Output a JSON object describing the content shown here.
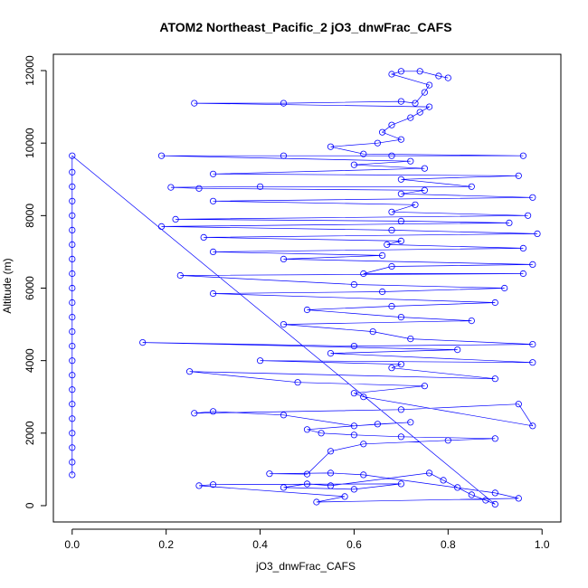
{
  "chart_data": {
    "type": "scatter",
    "title": "ATOM2 Northeast_Pacific_2 jO3_dnwFrac_CAFS",
    "xlabel": "jO3_dnwFrac_CAFS",
    "ylabel": "Altitude (m)",
    "xlim": [
      -0.04,
      1.04
    ],
    "ylim": [
      -450,
      12450
    ],
    "x_ticks": [
      0.0,
      0.2,
      0.4,
      0.6,
      0.8,
      1.0
    ],
    "x_tick_labels": [
      "0.0",
      "0.2",
      "0.4",
      "0.6",
      "0.8",
      "1.0"
    ],
    "y_ticks": [
      0,
      2000,
      4000,
      6000,
      8000,
      10000,
      12000
    ],
    "y_tick_labels": [
      "0",
      "2000",
      "4000",
      "6000",
      "8000",
      "10000",
      "12000"
    ],
    "grid": false,
    "legend": "none",
    "marker": "open-circle",
    "connect_points": true,
    "series": [
      {
        "color": "#0000ff",
        "points": [
          [
            0.0,
            850
          ],
          [
            0.0,
            1200
          ],
          [
            0.0,
            1600
          ],
          [
            0.0,
            2000
          ],
          [
            0.0,
            2400
          ],
          [
            0.0,
            2800
          ],
          [
            0.0,
            3200
          ],
          [
            0.0,
            3600
          ],
          [
            0.0,
            4000
          ],
          [
            0.0,
            4400
          ],
          [
            0.0,
            4800
          ],
          [
            0.0,
            5200
          ],
          [
            0.0,
            5600
          ],
          [
            0.0,
            6000
          ],
          [
            0.0,
            6400
          ],
          [
            0.0,
            6800
          ],
          [
            0.0,
            7200
          ],
          [
            0.0,
            7600
          ],
          [
            0.0,
            8000
          ],
          [
            0.0,
            8400
          ],
          [
            0.0,
            8800
          ],
          [
            0.0,
            9200
          ],
          [
            0.0,
            9650
          ],
          [
            0.9,
            40
          ],
          [
            0.88,
            150
          ],
          [
            0.85,
            300
          ],
          [
            0.82,
            500
          ],
          [
            0.79,
            700
          ],
          [
            0.76,
            900
          ],
          [
            0.55,
            550
          ],
          [
            0.5,
            600
          ],
          [
            0.45,
            500
          ],
          [
            0.6,
            450
          ],
          [
            0.7,
            600
          ],
          [
            0.3,
            580
          ],
          [
            0.27,
            550
          ],
          [
            0.58,
            250
          ],
          [
            0.52,
            100
          ],
          [
            0.95,
            200
          ],
          [
            0.9,
            350
          ],
          [
            0.62,
            850
          ],
          [
            0.55,
            900
          ],
          [
            0.42,
            880
          ],
          [
            0.5,
            870
          ],
          [
            0.55,
            1500
          ],
          [
            0.62,
            1700
          ],
          [
            0.8,
            1800
          ],
          [
            0.9,
            1850
          ],
          [
            0.7,
            1900
          ],
          [
            0.6,
            1950
          ],
          [
            0.53,
            2000
          ],
          [
            0.5,
            2100
          ],
          [
            0.65,
            2250
          ],
          [
            0.72,
            2300
          ],
          [
            0.6,
            2200
          ],
          [
            0.45,
            2500
          ],
          [
            0.3,
            2600
          ],
          [
            0.26,
            2550
          ],
          [
            0.7,
            2650
          ],
          [
            0.95,
            2800
          ],
          [
            0.98,
            2200
          ],
          [
            0.62,
            3000
          ],
          [
            0.6,
            3100
          ],
          [
            0.75,
            3300
          ],
          [
            0.48,
            3400
          ],
          [
            0.25,
            3700
          ],
          [
            0.9,
            3500
          ],
          [
            0.68,
            3800
          ],
          [
            0.7,
            3900
          ],
          [
            0.4,
            4000
          ],
          [
            0.98,
            3950
          ],
          [
            0.55,
            4200
          ],
          [
            0.82,
            4300
          ],
          [
            0.15,
            4500
          ],
          [
            0.6,
            4400
          ],
          [
            0.98,
            4450
          ],
          [
            0.72,
            4600
          ],
          [
            0.64,
            4800
          ],
          [
            0.45,
            5000
          ],
          [
            0.85,
            5100
          ],
          [
            0.7,
            5200
          ],
          [
            0.5,
            5400
          ],
          [
            0.68,
            5500
          ],
          [
            0.9,
            5600
          ],
          [
            0.3,
            5850
          ],
          [
            0.66,
            5900
          ],
          [
            0.92,
            6000
          ],
          [
            0.6,
            6100
          ],
          [
            0.23,
            6350
          ],
          [
            0.96,
            6400
          ],
          [
            0.62,
            6400
          ],
          [
            0.68,
            6600
          ],
          [
            0.98,
            6650
          ],
          [
            0.45,
            6800
          ],
          [
            0.66,
            6900
          ],
          [
            0.3,
            7000
          ],
          [
            0.96,
            7100
          ],
          [
            0.67,
            7200
          ],
          [
            0.7,
            7300
          ],
          [
            0.28,
            7400
          ],
          [
            0.99,
            7500
          ],
          [
            0.68,
            7600
          ],
          [
            0.19,
            7700
          ],
          [
            0.93,
            7800
          ],
          [
            0.7,
            7850
          ],
          [
            0.22,
            7900
          ],
          [
            0.97,
            8000
          ],
          [
            0.68,
            8100
          ],
          [
            0.73,
            8300
          ],
          [
            0.3,
            8400
          ],
          [
            0.98,
            8500
          ],
          [
            0.7,
            8600
          ],
          [
            0.75,
            8700
          ],
          [
            0.27,
            8750
          ],
          [
            0.21,
            8780
          ],
          [
            0.4,
            8800
          ],
          [
            0.85,
            8800
          ],
          [
            0.7,
            9000
          ],
          [
            0.95,
            9100
          ],
          [
            0.3,
            9150
          ],
          [
            0.75,
            9300
          ],
          [
            0.6,
            9400
          ],
          [
            0.72,
            9500
          ],
          [
            0.19,
            9650
          ],
          [
            0.45,
            9650
          ],
          [
            0.68,
            9650
          ],
          [
            0.96,
            9650
          ],
          [
            0.62,
            9700
          ],
          [
            0.55,
            9900
          ],
          [
            0.65,
            10000
          ],
          [
            0.7,
            10100
          ],
          [
            0.66,
            10300
          ],
          [
            0.68,
            10500
          ],
          [
            0.72,
            10700
          ],
          [
            0.74,
            10850
          ],
          [
            0.76,
            11000
          ],
          [
            0.26,
            11100
          ],
          [
            0.45,
            11100
          ],
          [
            0.7,
            11150
          ],
          [
            0.73,
            11100
          ],
          [
            0.75,
            11400
          ],
          [
            0.76,
            11600
          ],
          [
            0.68,
            11900
          ],
          [
            0.7,
            11980
          ],
          [
            0.74,
            11980
          ],
          [
            0.78,
            11850
          ],
          [
            0.8,
            11800
          ]
        ]
      }
    ]
  }
}
